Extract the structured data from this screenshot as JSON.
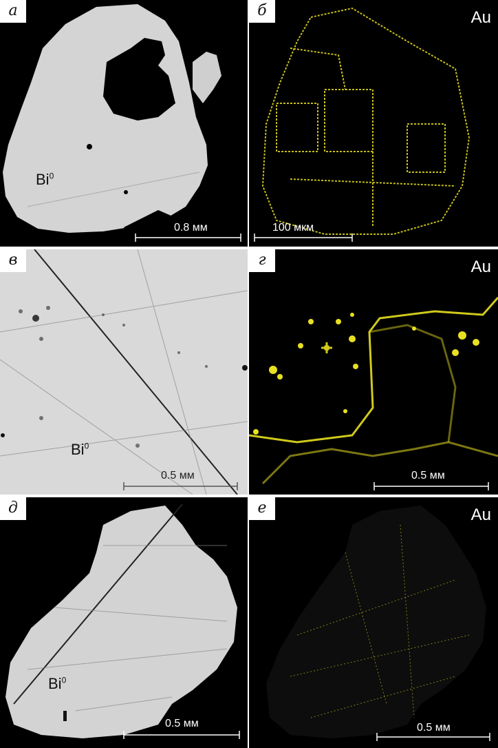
{
  "panels": [
    {
      "letter": "а",
      "phase": "Bi",
      "phase_sup": "0",
      "scale": "0.8 мм"
    },
    {
      "letter": "б",
      "element": "Au",
      "scale": "100 мкм"
    },
    {
      "letter": "в",
      "phase": "Bi",
      "phase_sup": "0",
      "scale": "0.5 мм"
    },
    {
      "letter": "г",
      "element": "Au",
      "scale": "0.5 мм"
    },
    {
      "letter": "д",
      "phase": "Bi",
      "phase_sup": "0",
      "scale": "0.5 мм"
    },
    {
      "letter": "е",
      "element": "Au",
      "scale": "0.5 мм"
    }
  ],
  "colors": {
    "grain": "#d6d6d6",
    "background": "#000000",
    "gold_signal": "#e8e020",
    "scale_bar_dark": "#ffffff",
    "scale_bar_light": "#555555"
  }
}
